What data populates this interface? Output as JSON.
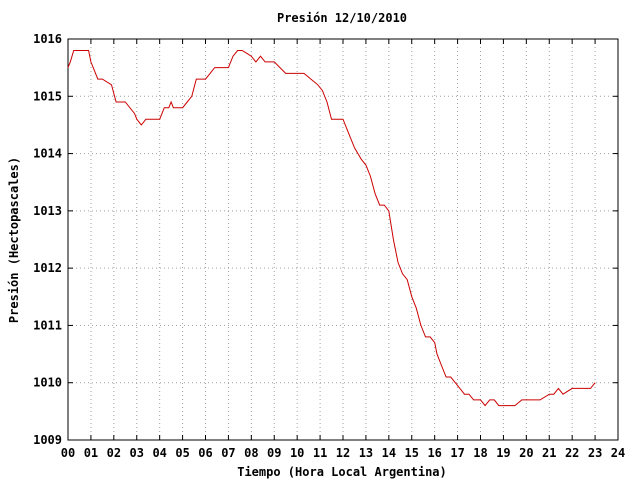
{
  "chart_data": {
    "type": "line",
    "title": "Presión 12/10/2010",
    "xlabel": "Tiempo (Hora Local Argentina)",
    "ylabel": "Presión (Hectopascales)",
    "xlim": [
      0,
      24
    ],
    "ylim": [
      1009,
      1016
    ],
    "xticks": [
      "00",
      "01",
      "02",
      "03",
      "04",
      "05",
      "06",
      "07",
      "08",
      "09",
      "10",
      "11",
      "12",
      "13",
      "14",
      "15",
      "16",
      "17",
      "18",
      "19",
      "20",
      "21",
      "22",
      "23",
      "24"
    ],
    "yticks": [
      1009,
      1010,
      1011,
      1012,
      1013,
      1014,
      1015,
      1016
    ],
    "grid": true,
    "line_color": "#cc0000",
    "series": [
      {
        "x": [
          0.0,
          0.1,
          0.25,
          0.5,
          0.9,
          1.0,
          1.1,
          1.3,
          1.5,
          1.9,
          2.1,
          2.3,
          2.5,
          2.9,
          3.0,
          3.2,
          3.4,
          3.6,
          4.0,
          4.2,
          4.4,
          4.5,
          4.6,
          5.0,
          5.2,
          5.4,
          5.6,
          5.8,
          6.0,
          6.2,
          6.4,
          6.6,
          7.0,
          7.2,
          7.4,
          7.6,
          7.8,
          8.0,
          8.2,
          8.4,
          8.6,
          8.8,
          9.0,
          9.5,
          10.0,
          10.3,
          10.6,
          10.9,
          11.1,
          11.3,
          11.5,
          11.7,
          12.0,
          12.2,
          12.5,
          12.8,
          13.0,
          13.2,
          13.4,
          13.6,
          13.8,
          14.0,
          14.2,
          14.4,
          14.6,
          14.8,
          15.0,
          15.2,
          15.4,
          15.6,
          15.8,
          16.0,
          16.1,
          16.3,
          16.5,
          16.7,
          16.9,
          17.1,
          17.3,
          17.5,
          17.7,
          17.9,
          18.0,
          18.2,
          18.4,
          18.6,
          18.8,
          19.0,
          19.2,
          19.5,
          19.8,
          20.2,
          20.6,
          21.0,
          21.2,
          21.4,
          21.6,
          22.0,
          22.4,
          22.8,
          23.0
        ],
        "y": [
          1015.5,
          1015.6,
          1015.8,
          1015.8,
          1015.8,
          1015.6,
          1015.5,
          1015.3,
          1015.3,
          1015.2,
          1014.9,
          1014.9,
          1014.9,
          1014.7,
          1014.6,
          1014.5,
          1014.6,
          1014.6,
          1014.6,
          1014.8,
          1014.8,
          1014.9,
          1014.8,
          1014.8,
          1014.9,
          1015.0,
          1015.3,
          1015.3,
          1015.3,
          1015.4,
          1015.5,
          1015.5,
          1015.5,
          1015.7,
          1015.8,
          1015.8,
          1015.75,
          1015.7,
          1015.6,
          1015.7,
          1015.6,
          1015.6,
          1015.6,
          1015.4,
          1015.4,
          1015.4,
          1015.3,
          1015.2,
          1015.1,
          1014.9,
          1014.6,
          1014.6,
          1014.6,
          1014.4,
          1014.1,
          1013.9,
          1013.8,
          1013.6,
          1013.3,
          1013.1,
          1013.1,
          1013.0,
          1012.5,
          1012.1,
          1011.9,
          1011.8,
          1011.5,
          1011.3,
          1011.0,
          1010.8,
          1010.8,
          1010.7,
          1010.5,
          1010.3,
          1010.1,
          1010.1,
          1010.0,
          1009.9,
          1009.8,
          1009.8,
          1009.7,
          1009.7,
          1009.7,
          1009.6,
          1009.7,
          1009.7,
          1009.6,
          1009.6,
          1009.6,
          1009.6,
          1009.7,
          1009.7,
          1009.7,
          1009.8,
          1009.8,
          1009.9,
          1009.8,
          1009.9,
          1009.9,
          1009.9,
          1010.0
        ]
      }
    ]
  }
}
